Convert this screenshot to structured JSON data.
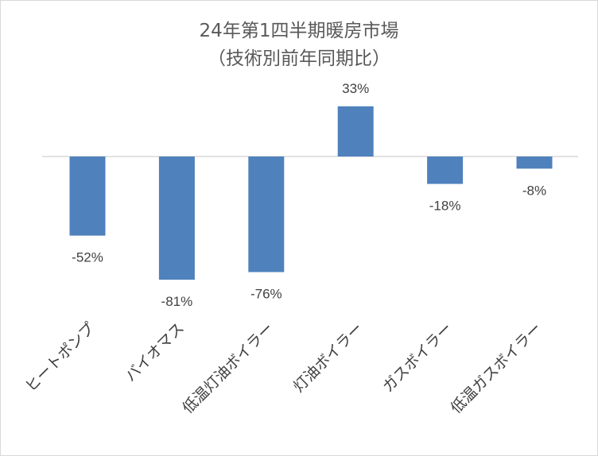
{
  "chart_data": {
    "type": "bar",
    "title": "24年第1四半期暖房市場",
    "subtitle": "（技術別前年同期比）",
    "categories": [
      "ヒートポンプ",
      "バイオマス",
      "低温灯油ボイラー",
      "灯油ボイラー",
      "ガスボイラー",
      "低温ガスボイラー"
    ],
    "values": [
      -52,
      -81,
      -76,
      33,
      -18,
      -8
    ],
    "data_labels": [
      "-52%",
      "-81%",
      "-76%",
      "33%",
      "-18%",
      "-8%"
    ],
    "unit": "%",
    "xlabel": "",
    "ylabel": "",
    "ylim": [
      -100,
      50
    ],
    "grid": false,
    "legend": "none",
    "bar_color": "#4f81bd"
  }
}
